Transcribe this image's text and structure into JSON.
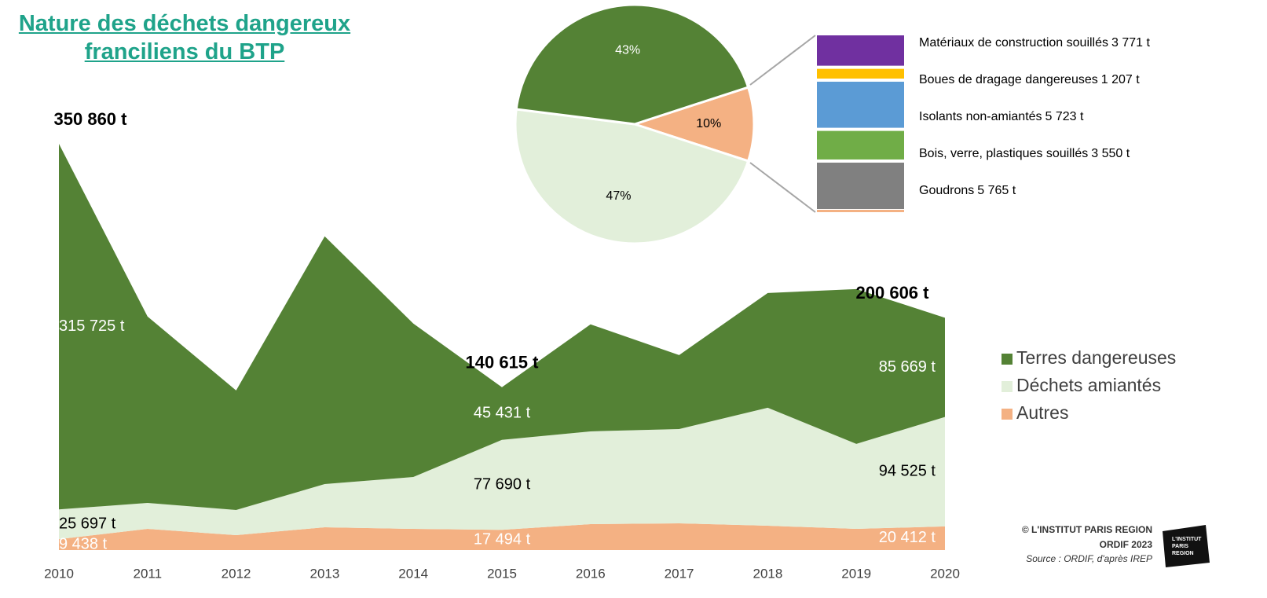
{
  "chart_data": [
    {
      "type": "area",
      "title": "Nature des déchets dangereux franciliens du BTP",
      "categories": [
        "2010",
        "2011",
        "2012",
        "2013",
        "2014",
        "2015",
        "2016",
        "2017",
        "2018",
        "2019",
        "2020"
      ],
      "ylim": [
        0,
        380000
      ],
      "series": [
        {
          "name": "Autres",
          "color": "#f4b183",
          "label_color": "#ffffff",
          "values": [
            9438,
            18300,
            12900,
            19700,
            18300,
            17494,
            22400,
            23100,
            21000,
            18300,
            20412
          ],
          "value_labels": [
            "9 438 t",
            null,
            null,
            null,
            null,
            "17 494 t",
            null,
            null,
            null,
            null,
            "20 412 t"
          ]
        },
        {
          "name": "Déchets amiantés",
          "color": "#e2efda",
          "label_color": "#000000",
          "values": [
            25697,
            22400,
            21700,
            37300,
            44800,
            77690,
            80100,
            81400,
            101900,
            73400,
            94525
          ],
          "value_labels": [
            "25 697 t",
            null,
            null,
            null,
            null,
            "77 690 t",
            null,
            null,
            null,
            null,
            "94 525 t"
          ]
        },
        {
          "name": "Terres dangereuses",
          "color": "#548235",
          "label_color": "#ffffff",
          "values": [
            315725,
            161000,
            103200,
            213900,
            132500,
            45431,
            92400,
            63900,
            99100,
            133700,
            85669
          ],
          "value_labels": [
            "315 725 t",
            null,
            null,
            null,
            null,
            "45 431 t",
            null,
            null,
            null,
            null,
            "85 669 t"
          ]
        }
      ],
      "annotations": [
        {
          "x": "2010",
          "value": 350860,
          "label": "350 860 t"
        },
        {
          "x": "2015",
          "value": 140615,
          "label": "140 615 t"
        },
        {
          "x": "2020",
          "value": 200606,
          "label": "200 606 t"
        }
      ],
      "legend": "right"
    },
    {
      "type": "pie",
      "values": [
        10,
        47,
        43
      ],
      "value_labels": [
        "10%",
        "47%",
        "43%"
      ],
      "colors": [
        "#f4b183",
        "#e2efda",
        "#548235"
      ]
    },
    {
      "type": "stacked_bar",
      "categories": [
        "Matériaux de construction souillés",
        "Boues de dragage dangereuses",
        "Isolants non-amiantés",
        "Bois, verre, plastiques souillés",
        "Goudrons"
      ],
      "values": [
        3771,
        1207,
        5723,
        3550,
        5765
      ],
      "value_labels": [
        "3 771 t",
        "1 207 t",
        "5 723 t",
        "3 550 t",
        "5 765 t"
      ],
      "colors": [
        "#7030a0",
        "#ffc000",
        "#5b9bd5",
        "#70ad47",
        "#808080"
      ]
    }
  ],
  "footer": {
    "copyright": "© L'INSTITUT PARIS REGION",
    "edition": "ORDIF 2023",
    "source": "Source : ORDIF, d'après IREP",
    "logo": [
      "L'INSTITUT",
      "PARIS",
      "REGION"
    ]
  }
}
